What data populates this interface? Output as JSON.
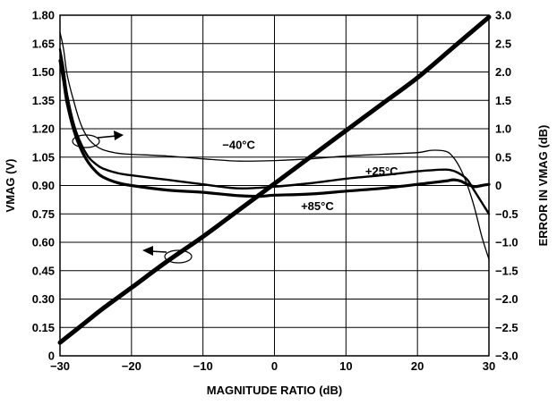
{
  "chart_data": {
    "type": "line",
    "xlabel": "MAGNITUDE RATIO (dB)",
    "ylabel_left": "VMAG (V)",
    "ylabel_right": "ERROR IN VMAG (dB)",
    "xlim": [
      -30,
      30
    ],
    "ylim_left": [
      0,
      1.8
    ],
    "ylim_right": [
      -3.0,
      3.0
    ],
    "grid": true,
    "x_ticks": [
      {
        "v": -30,
        "label": "−30"
      },
      {
        "v": -20,
        "label": "−20"
      },
      {
        "v": -10,
        "label": "−10"
      },
      {
        "v": 0,
        "label": "0"
      },
      {
        "v": 10,
        "label": "10"
      },
      {
        "v": 20,
        "label": "20"
      },
      {
        "v": 30,
        "label": "30"
      }
    ],
    "y_left_ticks": [
      {
        "v": 0,
        "label": "0"
      },
      {
        "v": 0.15,
        "label": "0.15"
      },
      {
        "v": 0.3,
        "label": "0.30"
      },
      {
        "v": 0.45,
        "label": "0.45"
      },
      {
        "v": 0.6,
        "label": "0.60"
      },
      {
        "v": 0.75,
        "label": "0.75"
      },
      {
        "v": 0.9,
        "label": "0.90"
      },
      {
        "v": 1.05,
        "label": "1.05"
      },
      {
        "v": 1.2,
        "label": "1.20"
      },
      {
        "v": 1.35,
        "label": "1.35"
      },
      {
        "v": 1.5,
        "label": "1.50"
      },
      {
        "v": 1.65,
        "label": "1.65"
      },
      {
        "v": 1.8,
        "label": "1.80"
      }
    ],
    "y_right_ticks": [
      {
        "v": -3.0,
        "label": "−3.0"
      },
      {
        "v": -2.5,
        "label": "−2.5"
      },
      {
        "v": -2.0,
        "label": "−2.0"
      },
      {
        "v": -1.5,
        "label": "−1.5"
      },
      {
        "v": -1.0,
        "label": "−1.0"
      },
      {
        "v": -0.5,
        "label": "−0.5"
      },
      {
        "v": 0,
        "label": "0"
      },
      {
        "v": 0.5,
        "label": "0.5"
      },
      {
        "v": 1.0,
        "label": "1.0"
      },
      {
        "v": 1.5,
        "label": "1.5"
      },
      {
        "v": 2.0,
        "label": "2.0"
      },
      {
        "v": 2.5,
        "label": "2.5"
      },
      {
        "v": 3.0,
        "label": "3.0"
      }
    ],
    "series": [
      {
        "axis": "left",
        "x": [
          -30,
          -28,
          -26,
          -24,
          -20,
          -15,
          -10,
          -5,
          0,
          5,
          10,
          15,
          20,
          25,
          30
        ],
        "y": [
          0.07,
          0.13,
          0.19,
          0.25,
          0.36,
          0.5,
          0.63,
          0.77,
          0.91,
          1.05,
          1.19,
          1.33,
          1.47,
          1.63,
          1.79
        ]
      },
      {
        "name": "−40°C",
        "axis": "right",
        "x": [
          -30,
          -29.5,
          -29,
          -28,
          -27,
          -26,
          -25,
          -24,
          -22,
          -20,
          -15,
          -10,
          -5,
          0,
          5,
          10,
          15,
          20,
          22,
          24,
          25,
          26,
          27,
          28,
          29,
          30
        ],
        "y": [
          2.7,
          2.4,
          1.95,
          1.45,
          1.05,
          0.82,
          0.7,
          0.63,
          0.57,
          0.55,
          0.52,
          0.47,
          0.43,
          0.44,
          0.47,
          0.52,
          0.55,
          0.58,
          0.62,
          0.6,
          0.5,
          0.3,
          0.0,
          -0.4,
          -0.9,
          -1.3
        ]
      },
      {
        "name": "+25°C",
        "axis": "right",
        "x": [
          -30,
          -29.5,
          -29,
          -28,
          -27,
          -26,
          -25,
          -24,
          -22,
          -20,
          -15,
          -10,
          -5,
          0,
          5,
          10,
          15,
          20,
          22,
          24,
          25,
          26,
          27,
          28,
          29,
          30
        ],
        "y": [
          2.4,
          2.05,
          1.6,
          1.05,
          0.72,
          0.5,
          0.38,
          0.3,
          0.22,
          0.18,
          0.1,
          0.02,
          -0.05,
          -0.02,
          0.04,
          0.12,
          0.18,
          0.25,
          0.27,
          0.28,
          0.26,
          0.2,
          0.1,
          -0.1,
          -0.3,
          -0.5
        ]
      },
      {
        "name": "+85°C",
        "axis": "right",
        "x": [
          -30,
          -29.5,
          -29,
          -28,
          -27,
          -26,
          -25,
          -24,
          -22,
          -20,
          -15,
          -10,
          -5,
          -2,
          0,
          5,
          10,
          15,
          20,
          22,
          24,
          25,
          26,
          27,
          28,
          29,
          30
        ],
        "y": [
          2.2,
          1.85,
          1.45,
          0.95,
          0.62,
          0.4,
          0.25,
          0.15,
          0.05,
          0.0,
          -0.08,
          -0.12,
          -0.18,
          -0.19,
          -0.17,
          -0.15,
          -0.1,
          -0.05,
          0.02,
          0.05,
          0.08,
          0.1,
          0.08,
          0.02,
          -0.02,
          0.0,
          0.02
        ]
      }
    ],
    "annotations": [
      {
        "text": "−40°C",
        "x": -5,
        "y_right": 0.72
      },
      {
        "text": "+25°C",
        "x": 15,
        "y_right": 0.25
      },
      {
        "text": "+85°C",
        "x": 6,
        "y_right": -0.36
      }
    ]
  }
}
